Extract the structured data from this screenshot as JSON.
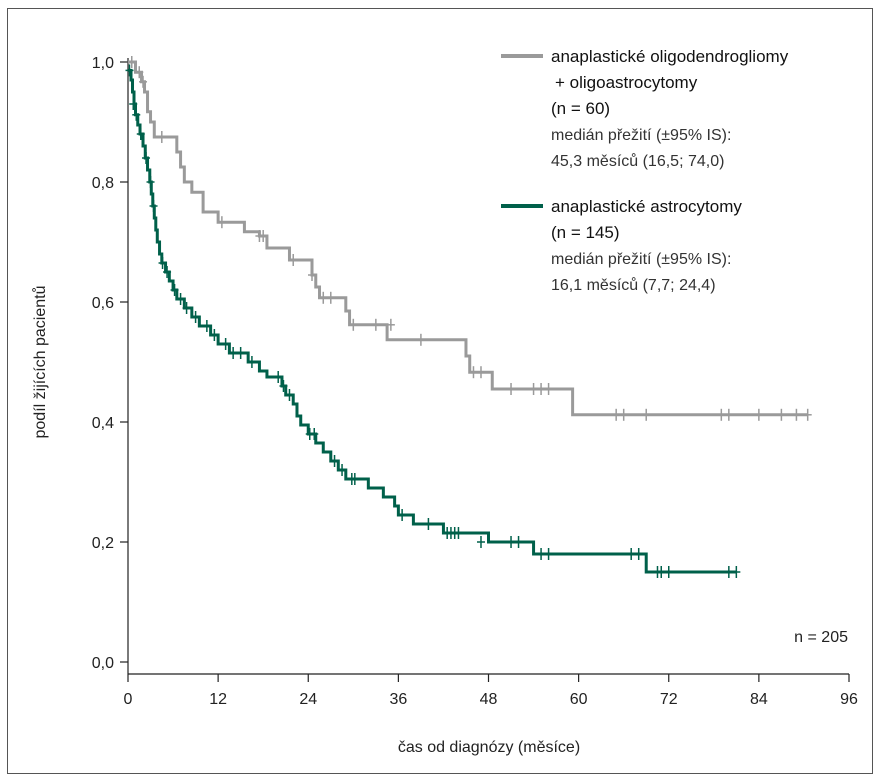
{
  "chart_data": {
    "type": "line",
    "title": "",
    "xlabel": "čas od diagnózy (měsíce)",
    "ylabel": "podíl žijících pacientů",
    "xlim": [
      0,
      96
    ],
    "ylim": [
      0,
      1.0
    ],
    "xticks": [
      0,
      12,
      24,
      36,
      48,
      60,
      72,
      84,
      96
    ],
    "xtick_labels": [
      "0",
      "12",
      "24",
      "36",
      "48",
      "60",
      "72",
      "84",
      "96"
    ],
    "yticks": [
      0,
      0.2,
      0.4,
      0.6,
      0.8,
      1.0
    ],
    "ytick_labels": [
      "0,0",
      "0,2",
      "0,4",
      "0,6",
      "0,8",
      "1,0"
    ],
    "grid": false,
    "legend_position": "top-right",
    "annotation": "n = 205",
    "series": [
      {
        "name": "anaplastické oligodendrogliomy + oligoastrocytomy",
        "legend_lines": [
          "anaplastické oligodendrogliomy",
          "+ oligoastrocytomy",
          "(n = 60)"
        ],
        "legend_sub": [
          "medián přežití (±95% IS):",
          "45,3 měsíců (16,5; 74,0)"
        ],
        "color": "#9a9a9a",
        "steps": [
          [
            0,
            1.0
          ],
          [
            1.0,
            0.983
          ],
          [
            1.8,
            0.967
          ],
          [
            2.2,
            0.95
          ],
          [
            2.6,
            0.917
          ],
          [
            3.0,
            0.9
          ],
          [
            3.5,
            0.875
          ],
          [
            6.5,
            0.85
          ],
          [
            7.0,
            0.825
          ],
          [
            7.5,
            0.8
          ],
          [
            8.5,
            0.783
          ],
          [
            10.0,
            0.75
          ],
          [
            12.0,
            0.733
          ],
          [
            15.5,
            0.717
          ],
          [
            17.5,
            0.71
          ],
          [
            18.5,
            0.69
          ],
          [
            21.5,
            0.67
          ],
          [
            24.5,
            0.645
          ],
          [
            25.0,
            0.625
          ],
          [
            25.5,
            0.607
          ],
          [
            29.0,
            0.585
          ],
          [
            29.5,
            0.562
          ],
          [
            34.0,
            0.562
          ],
          [
            34.5,
            0.537
          ],
          [
            45.0,
            0.51
          ],
          [
            45.5,
            0.483
          ],
          [
            48.5,
            0.455
          ],
          [
            59.2,
            0.412
          ],
          [
            90.5,
            0.412
          ]
        ],
        "censored": [
          [
            0.5,
            1.0
          ],
          [
            1.5,
            0.983
          ],
          [
            2.0,
            0.967
          ],
          [
            4.5,
            0.875
          ],
          [
            12.5,
            0.733
          ],
          [
            17.5,
            0.71
          ],
          [
            18.0,
            0.71
          ],
          [
            22.0,
            0.67
          ],
          [
            24.5,
            0.645
          ],
          [
            26.0,
            0.607
          ],
          [
            27.0,
            0.607
          ],
          [
            30.0,
            0.562
          ],
          [
            33.0,
            0.562
          ],
          [
            35.0,
            0.562
          ],
          [
            39.0,
            0.537
          ],
          [
            46.0,
            0.483
          ],
          [
            47.0,
            0.483
          ],
          [
            51.0,
            0.455
          ],
          [
            54.0,
            0.455
          ],
          [
            55.0,
            0.455
          ],
          [
            56.0,
            0.455
          ],
          [
            65.0,
            0.412
          ],
          [
            66.0,
            0.412
          ],
          [
            69.0,
            0.412
          ],
          [
            79.0,
            0.412
          ],
          [
            80.0,
            0.412
          ],
          [
            84.0,
            0.412
          ],
          [
            87.0,
            0.412
          ],
          [
            89.0,
            0.412
          ],
          [
            90.5,
            0.412
          ]
        ]
      },
      {
        "name": "anaplastické astrocytomy",
        "legend_lines": [
          "anaplastické astrocytomy",
          "(n = 145)"
        ],
        "legend_sub": [
          "medián přežití (±95% IS):",
          "16,1 měsíců (7,7; 24,4)"
        ],
        "color": "#00604a",
        "steps": [
          [
            0,
            0.986
          ],
          [
            0.4,
            0.97
          ],
          [
            0.6,
            0.95
          ],
          [
            0.8,
            0.93
          ],
          [
            1.0,
            0.912
          ],
          [
            1.3,
            0.895
          ],
          [
            1.6,
            0.88
          ],
          [
            2.0,
            0.86
          ],
          [
            2.3,
            0.84
          ],
          [
            2.6,
            0.82
          ],
          [
            2.9,
            0.8
          ],
          [
            3.1,
            0.78
          ],
          [
            3.3,
            0.76
          ],
          [
            3.5,
            0.74
          ],
          [
            3.7,
            0.72
          ],
          [
            3.9,
            0.7
          ],
          [
            4.2,
            0.68
          ],
          [
            4.5,
            0.665
          ],
          [
            5.0,
            0.65
          ],
          [
            5.5,
            0.635
          ],
          [
            6.0,
            0.62
          ],
          [
            6.5,
            0.605
          ],
          [
            7.5,
            0.59
          ],
          [
            8.5,
            0.575
          ],
          [
            9.5,
            0.56
          ],
          [
            11.0,
            0.545
          ],
          [
            12.0,
            0.53
          ],
          [
            13.5,
            0.515
          ],
          [
            16.0,
            0.5
          ],
          [
            17.5,
            0.485
          ],
          [
            18.5,
            0.475
          ],
          [
            20.5,
            0.46
          ],
          [
            21.0,
            0.445
          ],
          [
            22.0,
            0.43
          ],
          [
            22.5,
            0.41
          ],
          [
            23.0,
            0.395
          ],
          [
            24.0,
            0.38
          ],
          [
            25.0,
            0.365
          ],
          [
            26.0,
            0.35
          ],
          [
            27.0,
            0.335
          ],
          [
            28.0,
            0.32
          ],
          [
            29.0,
            0.305
          ],
          [
            32.0,
            0.29
          ],
          [
            34.0,
            0.275
          ],
          [
            35.5,
            0.26
          ],
          [
            36.0,
            0.245
          ],
          [
            38.0,
            0.23
          ],
          [
            42.0,
            0.215
          ],
          [
            48.0,
            0.2
          ],
          [
            54.0,
            0.18
          ],
          [
            69.0,
            0.15
          ],
          [
            81.0,
            0.15
          ]
        ],
        "censored": [
          [
            0.2,
            0.986
          ],
          [
            0.7,
            0.93
          ],
          [
            1.1,
            0.912
          ],
          [
            1.7,
            0.88
          ],
          [
            2.4,
            0.84
          ],
          [
            3.0,
            0.8
          ],
          [
            3.4,
            0.76
          ],
          [
            4.6,
            0.665
          ],
          [
            5.2,
            0.65
          ],
          [
            6.2,
            0.62
          ],
          [
            7.0,
            0.605
          ],
          [
            7.8,
            0.59
          ],
          [
            9.0,
            0.575
          ],
          [
            10.5,
            0.56
          ],
          [
            11.5,
            0.545
          ],
          [
            13.0,
            0.53
          ],
          [
            14.0,
            0.515
          ],
          [
            15.0,
            0.515
          ],
          [
            16.5,
            0.5
          ],
          [
            20.0,
            0.475
          ],
          [
            20.7,
            0.46
          ],
          [
            21.5,
            0.445
          ],
          [
            24.2,
            0.38
          ],
          [
            24.8,
            0.38
          ],
          [
            27.5,
            0.335
          ],
          [
            28.5,
            0.32
          ],
          [
            29.8,
            0.305
          ],
          [
            30.2,
            0.305
          ],
          [
            36.5,
            0.245
          ],
          [
            40.0,
            0.23
          ],
          [
            42.5,
            0.215
          ],
          [
            43.0,
            0.215
          ],
          [
            43.5,
            0.215
          ],
          [
            44.0,
            0.215
          ],
          [
            47.0,
            0.2
          ],
          [
            51.0,
            0.2
          ],
          [
            52.0,
            0.2
          ],
          [
            55.0,
            0.18
          ],
          [
            56.0,
            0.18
          ],
          [
            67.0,
            0.18
          ],
          [
            68.0,
            0.18
          ],
          [
            70.5,
            0.15
          ],
          [
            71.0,
            0.15
          ],
          [
            72.0,
            0.15
          ],
          [
            80.0,
            0.15
          ],
          [
            81.0,
            0.15
          ]
        ]
      }
    ]
  }
}
